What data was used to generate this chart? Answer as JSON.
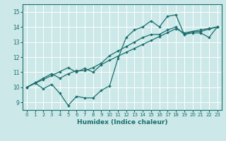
{
  "title": "",
  "xlabel": "Humidex (Indice chaleur)",
  "xlim": [
    -0.5,
    23.5
  ],
  "ylim": [
    8.5,
    15.5
  ],
  "xticks": [
    0,
    1,
    2,
    3,
    4,
    5,
    6,
    7,
    8,
    9,
    10,
    11,
    12,
    13,
    14,
    15,
    16,
    17,
    18,
    19,
    20,
    21,
    22,
    23
  ],
  "yticks": [
    9,
    10,
    11,
    12,
    13,
    14,
    15
  ],
  "bg_color": "#cce8e8",
  "line_color": "#1a6e6e",
  "grid_color": "#ffffff",
  "line1_x": [
    0,
    1,
    2,
    3,
    4,
    5,
    6,
    7,
    8,
    9,
    10,
    11,
    12,
    13,
    14,
    15,
    16,
    17,
    18,
    19,
    20,
    21,
    22,
    23
  ],
  "line1_y": [
    10.0,
    10.3,
    9.9,
    10.2,
    9.6,
    8.8,
    9.4,
    9.3,
    9.3,
    9.8,
    10.1,
    11.9,
    13.3,
    13.8,
    14.0,
    14.4,
    14.0,
    14.7,
    14.8,
    13.5,
    13.6,
    13.6,
    13.3,
    14.0
  ],
  "line2_x": [
    0,
    1,
    2,
    3,
    4,
    5,
    6,
    7,
    8,
    9,
    10,
    11,
    12,
    13,
    14,
    15,
    16,
    17,
    18,
    19,
    20,
    21,
    22,
    23
  ],
  "line2_y": [
    10.0,
    10.26,
    10.52,
    10.78,
    11.04,
    11.3,
    11.0,
    11.26,
    11.0,
    11.5,
    11.8,
    12.06,
    12.32,
    12.58,
    12.84,
    13.1,
    13.36,
    13.62,
    13.88,
    13.6,
    13.7,
    13.7,
    13.85,
    14.0
  ],
  "line3_x": [
    0,
    1,
    2,
    3,
    4,
    5,
    6,
    7,
    8,
    9,
    10,
    11,
    12,
    13,
    14,
    15,
    16,
    17,
    18,
    19,
    20,
    21,
    22,
    23
  ],
  "line3_y": [
    10.0,
    10.3,
    10.6,
    10.9,
    10.6,
    10.9,
    11.1,
    11.1,
    11.3,
    11.6,
    12.1,
    12.4,
    12.7,
    13.0,
    13.3,
    13.5,
    13.5,
    13.8,
    14.0,
    13.5,
    13.7,
    13.8,
    13.9,
    14.0
  ]
}
